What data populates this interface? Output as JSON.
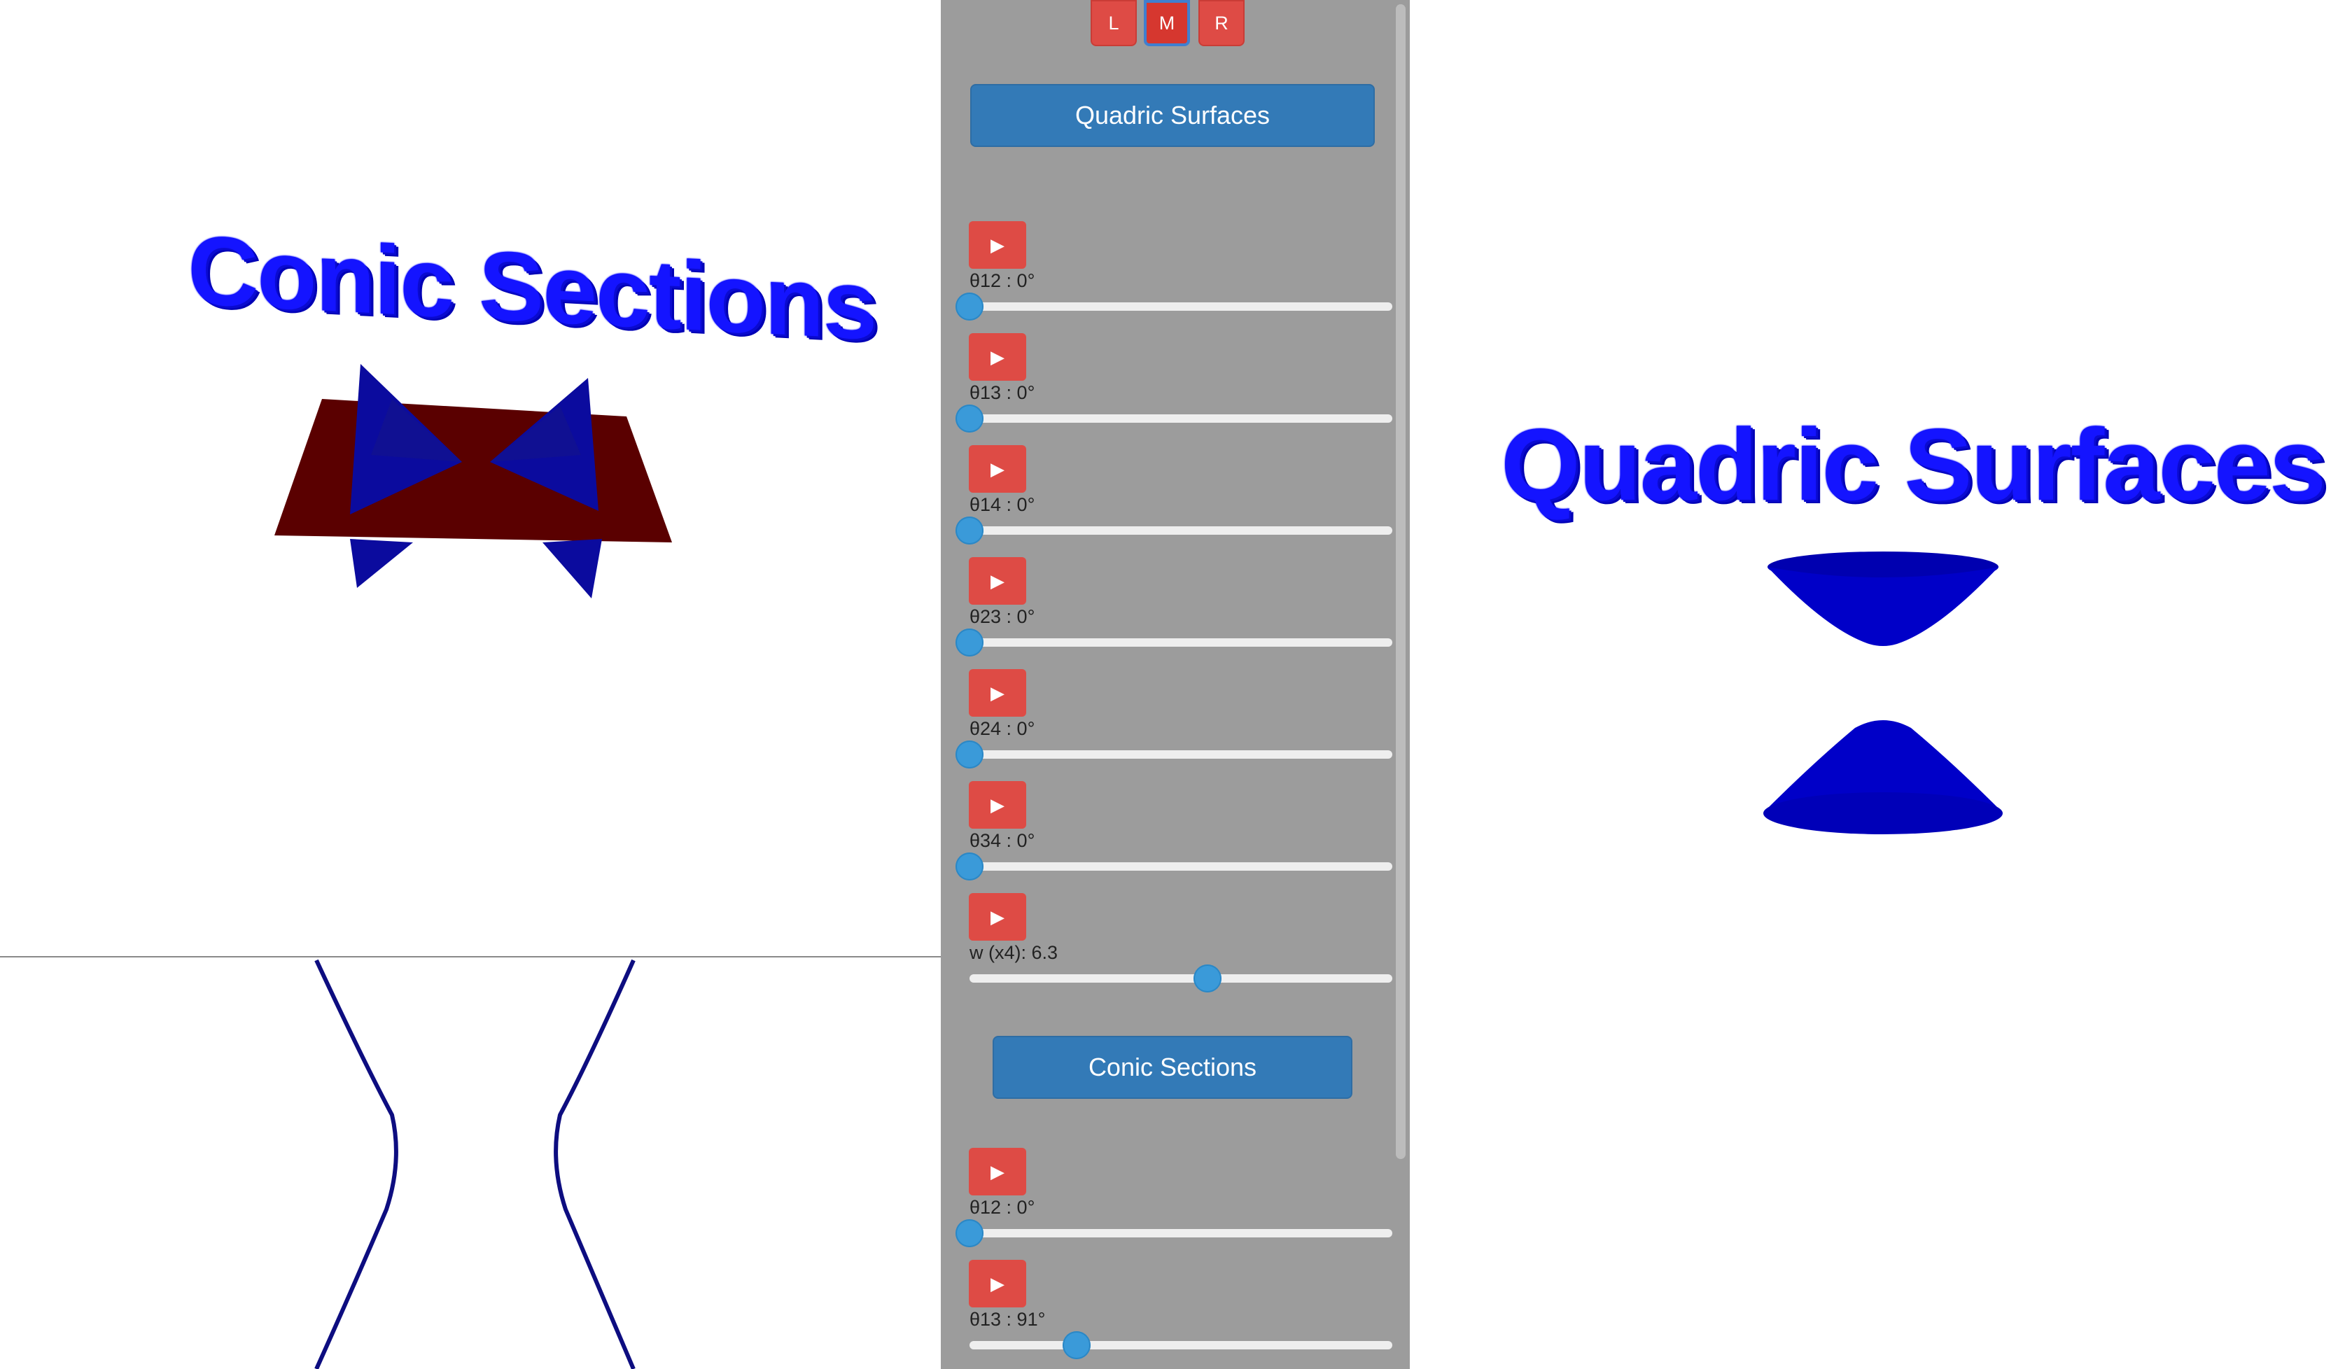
{
  "panel": {
    "view_buttons": [
      {
        "label": "L",
        "active": false
      },
      {
        "label": "M",
        "active": true
      },
      {
        "label": "R",
        "active": false
      }
    ],
    "quadric_button": "Quadric Surfaces",
    "conic_button": "Conic Sections",
    "quadric_controls": [
      {
        "label": "θ12 : 0°",
        "value": 0,
        "max": 360
      },
      {
        "label": "θ13 : 0°",
        "value": 0,
        "max": 360
      },
      {
        "label": "θ14 : 0°",
        "value": 0,
        "max": 360
      },
      {
        "label": "θ23 : 0°",
        "value": 0,
        "max": 360
      },
      {
        "label": "θ24 : 0°",
        "value": 0,
        "max": 360
      },
      {
        "label": "θ34 : 0°",
        "value": 0,
        "max": 360
      },
      {
        "label": "w (x4): 6.3",
        "value": 6.3,
        "max": 11.2
      }
    ],
    "conic_controls": [
      {
        "label": "θ12 : 0°",
        "value": 0,
        "max": 360
      },
      {
        "label": "θ13 : 91°",
        "value": 91,
        "max": 360
      }
    ],
    "play_icon": "▶"
  },
  "left_view": {
    "title": "Conic Sections",
    "colors": {
      "cone": "#0b0b8a",
      "plane": "#5a0000",
      "curve": "#0d0d80"
    }
  },
  "right_view": {
    "title": "Quadric Surfaces",
    "colors": {
      "surface": "#0000c8"
    }
  }
}
